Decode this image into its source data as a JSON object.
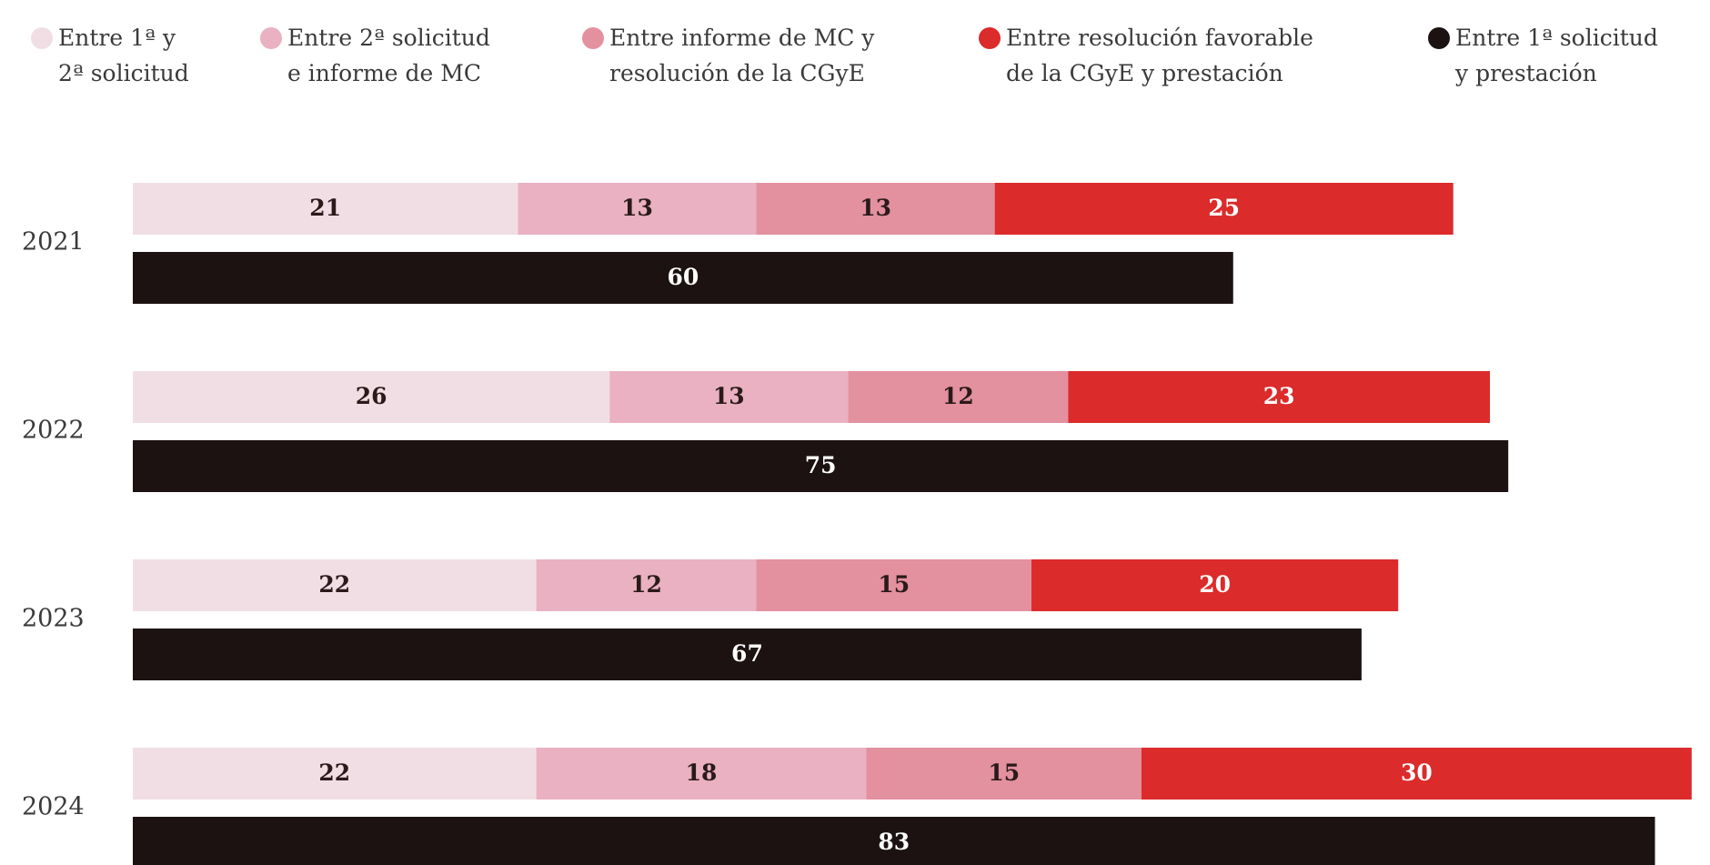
{
  "chart_data": {
    "type": "bar",
    "orientation": "horizontal",
    "categories": [
      "2021",
      "2022",
      "2023",
      "2024"
    ],
    "xlim": [
      0,
      86
    ],
    "series": [
      {
        "name": "Entre 1ª y\n2ª solicitud",
        "color": "#f1dee5",
        "label_color": "#2a1a1a",
        "stack": 0,
        "values": [
          21,
          26,
          22,
          22
        ]
      },
      {
        "name": "Entre 2ª solicitud\ne informe de MC",
        "color": "#e9b1c2",
        "label_color": "#2a1a1a",
        "stack": 0,
        "values": [
          13,
          13,
          12,
          18
        ]
      },
      {
        "name": "Entre informe de MC y\nresolución de la CGyE",
        "color": "#e3909f",
        "label_color": "#2a1a1a",
        "stack": 0,
        "values": [
          13,
          12,
          15,
          15
        ]
      },
      {
        "name": "Entre resolución favorable\nde la CGyE y prestación",
        "color": "#dc2b2b",
        "label_color": "#ffffff",
        "stack": 0,
        "values": [
          25,
          23,
          20,
          30
        ]
      },
      {
        "name": "Entre 1ª solicitud\ny prestación",
        "color": "#1c1212",
        "label_color": "#ffffff",
        "stack": 1,
        "values": [
          60,
          75,
          67,
          83
        ]
      }
    ]
  }
}
